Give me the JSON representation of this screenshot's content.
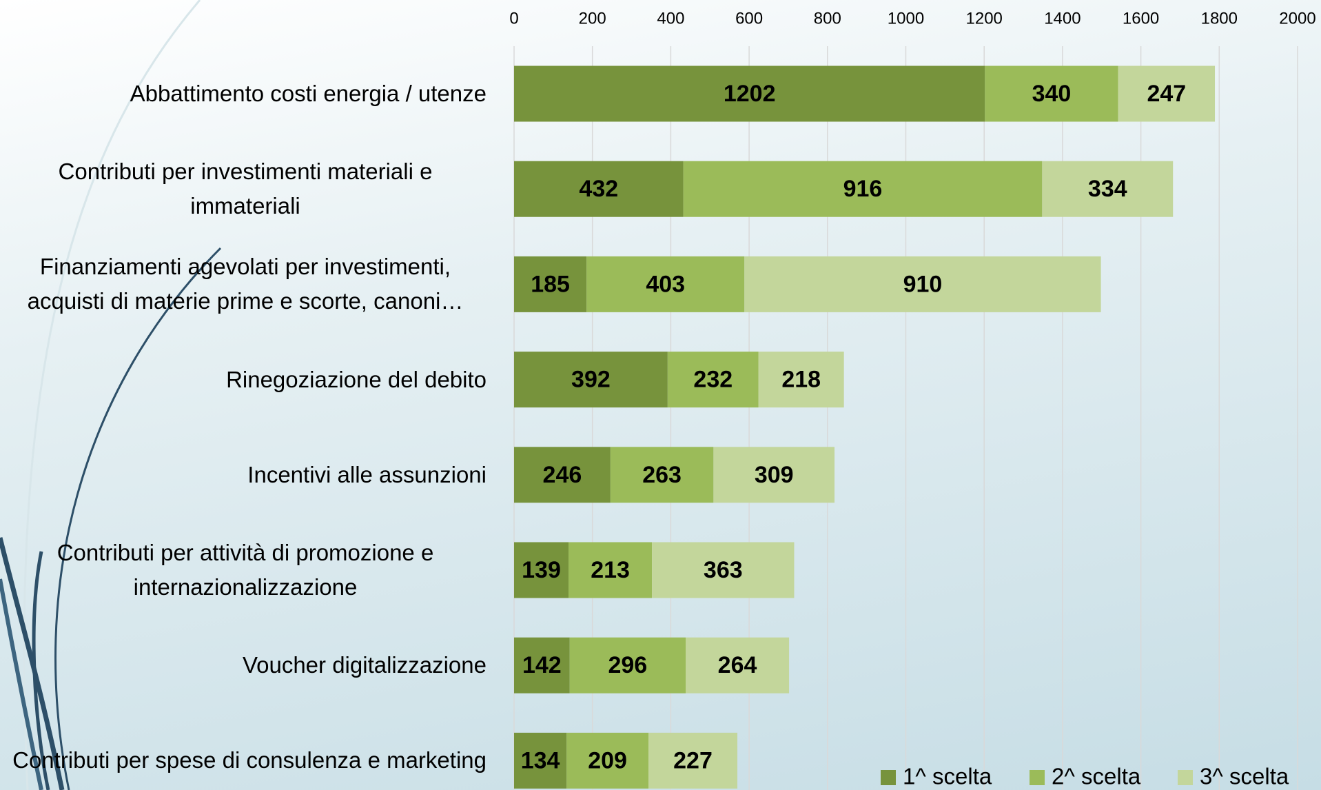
{
  "chart_data": {
    "type": "bar",
    "orientation": "horizontal",
    "stacked": true,
    "categories": [
      "Abbattimento costi energia / utenze",
      "Contributi per investimenti materiali e immateriali",
      "Finanziamenti agevolati per investimenti, acquisti di materie prime e scorte, canoni…",
      "Rinegoziazione del debito",
      "Incentivi alle assunzioni",
      "Contributi per attività di promozione e internazionalizzazione",
      "Voucher digitalizzazione",
      "Contributi per spese di consulenza e marketing"
    ],
    "series": [
      {
        "name": "1^ scelta",
        "color": "#77933c",
        "values": [
          1202,
          432,
          185,
          392,
          246,
          139,
          142,
          134
        ]
      },
      {
        "name": "2^ scelta",
        "color": "#9bbb59",
        "values": [
          340,
          916,
          403,
          232,
          263,
          213,
          296,
          209
        ]
      },
      {
        "name": "3^ scelta",
        "color": "#c3d69b",
        "values": [
          247,
          334,
          910,
          218,
          309,
          363,
          264,
          227
        ]
      }
    ],
    "xlim": [
      0,
      2000
    ],
    "xticks": [
      0,
      200,
      400,
      600,
      800,
      1000,
      1200,
      1400,
      1600,
      1800,
      2000
    ],
    "grid": true,
    "legend": "bottom-right"
  }
}
